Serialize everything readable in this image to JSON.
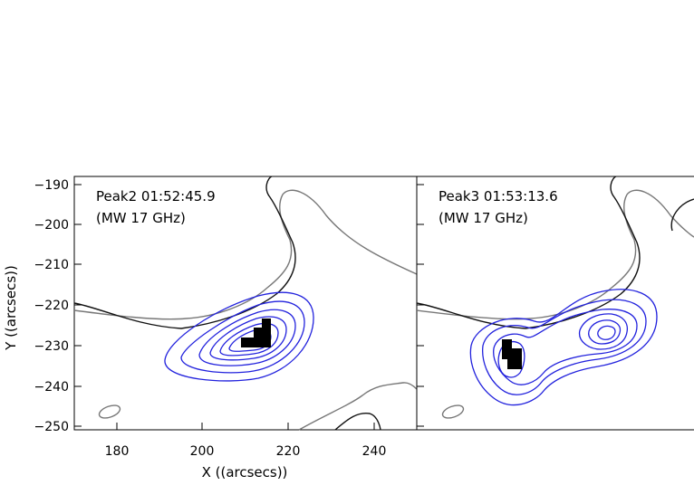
{
  "chart_data": [
    {
      "type": "contour",
      "title": "Peak2 01:52:45.9",
      "subtitle": "(MW 17 GHz)",
      "xlabel": "X ((arcsecs))",
      "ylabel": "Y ((arcsecs))",
      "xlim": [
        170,
        250
      ],
      "ylim": [
        -252,
        -188
      ],
      "x_ticks": [
        180,
        200,
        220,
        240
      ],
      "y_ticks": [
        -190,
        -200,
        -210,
        -220,
        -230,
        -240,
        -250
      ],
      "microwave_peak": {
        "x": 214,
        "y": -228
      }
    },
    {
      "type": "contour",
      "title": "Peak3 01:53:13.6",
      "subtitle": "(MW 17 GHz)",
      "xlabel": "",
      "ylabel": "",
      "xlim": [
        170,
        250
      ],
      "ylim": [
        -252,
        -188
      ],
      "microwave_peaks": [
        {
          "x": 186,
          "y": -233
        },
        {
          "x": 214,
          "y": -228
        }
      ]
    }
  ],
  "x_tick_labels": [
    "180",
    "200",
    "220",
    "240"
  ],
  "y_tick_labels": [
    "−190",
    "−200",
    "−210",
    "−220",
    "−230",
    "−240",
    "−250"
  ],
  "colors": {
    "contour_mw": "#2222dd",
    "contour_dark": "#111111",
    "contour_gray": "#777777"
  }
}
